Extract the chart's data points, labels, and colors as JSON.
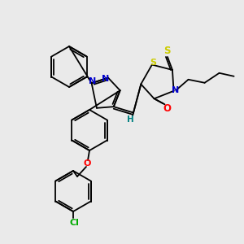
{
  "bg_color": "#eaeaea",
  "bond_color": "#000000",
  "atom_colors": {
    "N": "#0000cc",
    "O": "#ff0000",
    "S": "#cccc00",
    "Cl": "#00aa00",
    "H": "#008080",
    "C": "#000000"
  },
  "figsize": [
    3.0,
    3.0
  ],
  "dpi": 100
}
